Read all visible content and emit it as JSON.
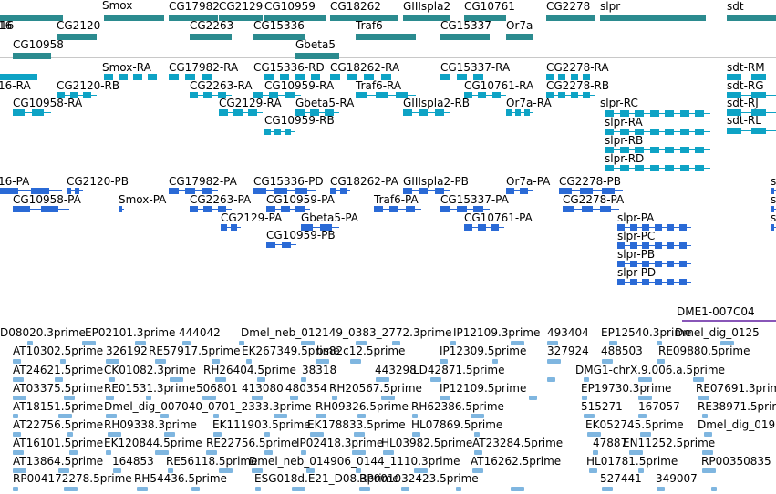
{
  "colors": {
    "gene": "#2b8b8f",
    "mrna": "#0ea3c5",
    "cds": "#2a6ad6",
    "est": "#7fb6e0",
    "clone": "#8856b8",
    "divider": "#c8c8c8"
  },
  "tracks": {
    "gene_labels": [
      "16",
      "Smox",
      "CG17982",
      "CG2129",
      "CG10959",
      "CG18262",
      "GIIIspla2",
      "CG10761",
      "CG2278",
      "slpr",
      "sdt",
      "CG2120",
      "CG2263",
      "CG15336",
      "Traf6",
      "CG15337",
      "Or7a",
      "CG10958",
      "Gbeta5"
    ],
    "mrna_labels": [
      "Smox-RA",
      "CG17982-RA",
      "CG15336-RD",
      "CG18262-RA",
      "CG15337-RA",
      "CG2278-RA",
      "sdt-RM",
      "16-RA",
      "CG2120-RB",
      "CG2263-RA",
      "CG10959-RA",
      "Traf6-RA",
      "CG10761-RA",
      "CG2278-RB",
      "sdt-RG",
      "CG10958-RA",
      "CG2129-RA",
      "Gbeta5-RA",
      "GIIIspla2-RB",
      "Or7a-RA",
      "slpr-RC",
      "sdt-RJ",
      "sdt-RL",
      "CG10959-RB",
      "slpr-RA",
      "slpr-RB",
      "slpr-RD"
    ],
    "cds_labels": [
      "16-PA",
      "CG2120-PB",
      "CG17982-PA",
      "CG15336-PD",
      "CG18262-PA",
      "GIIIspla2-PB",
      "Or7a-PA",
      "CG2278-PB",
      "CG10958-PA",
      "Smox-PA",
      "CG2263-PA",
      "CG10959-PA",
      "Traf6-PA",
      "CG15337-PA",
      "CG2278-PA",
      "CG2129-PA",
      "Gbeta5-PA",
      "CG10761-PA",
      "slpr-PA",
      "CG10959-PB",
      "slpr-PC",
      "slpr-PB",
      "slpr-PD",
      "s"
    ],
    "clone_label": "DME1-007C04",
    "est_labels": [
      "D08020.3prime",
      "EP02101.3prime",
      "444042",
      "Dmel_neb_012149_0383_2772.3prime",
      "IP12109.3prime",
      "493404",
      "EP12540.3prime",
      "Dmel_dig_0125",
      "AT10302.5prime",
      "326192",
      "RE57917.5prime",
      "EK267349.5prime",
      "bs82c12.5prime",
      "IP12309.5prime",
      "327924",
      "488503",
      "RE09880.5prime",
      "AT24621.5prime",
      "CK01082.3prime",
      "RH26404.5prime",
      "38318",
      "443298",
      "LD42871.5prime",
      "DMG1-chrX.9.006.a.5prime",
      "AT03375.5prime",
      "RE01531.3prime",
      "506801",
      "413080",
      "480354",
      "RH20567.5prime",
      "IP12109.5prime",
      "EP19730.3prime",
      "RE07691.3prime",
      "AT18151.5prime",
      "Dmel_dig_007040_0701_2333.3prime",
      "RH09326.5prime",
      "RH62386.5prime",
      "515271",
      "167057",
      "RE38971.5prime",
      "AT22756.5prime",
      "RH09338.3prime",
      "EK111903.5prime",
      "EK178833.5prime",
      "HL07869.5prime",
      "EK052745.5prime",
      "Dmel_dig_019",
      "AT16101.5prime",
      "EK120844.5prime",
      "RE22756.5prime",
      "IP02418.3prime",
      "HL03982.5prime",
      "AT23284.5prime",
      "47887",
      "EN11252.5prime",
      "AT13864.5prime",
      "164853",
      "RE56118.5prime",
      "Dmel_neb_014906_0144_1110.3prime",
      "AT16262.5prime",
      "HL01781.5prime",
      "RP00350835",
      "RP004172278.5prime",
      "RH54436.5prime",
      "ESG018d.E21_D08.3prime",
      "RP001032423.5prime",
      "527441",
      "349007"
    ]
  }
}
